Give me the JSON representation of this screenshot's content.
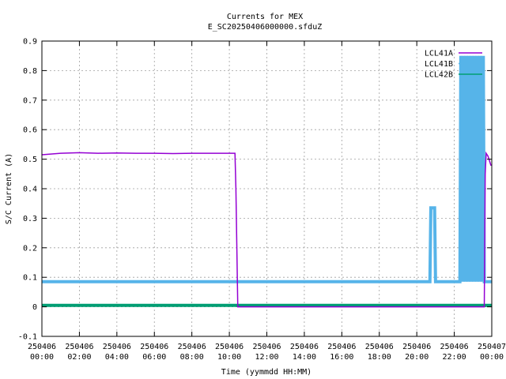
{
  "chart_data": {
    "type": "line",
    "title": "Currents for MEX",
    "subtitle": "E_SC20250406000000.sfduZ",
    "xlabel": "Time (yymmdd HH:MM)",
    "ylabel": "S/C Current (A)",
    "xlim": [
      0,
      24
    ],
    "ylim": [
      -0.1,
      0.9
    ],
    "grid": true,
    "legend_position": "top-right",
    "x_ticks": [
      {
        "value": 0,
        "date": "250406",
        "time": "00:00"
      },
      {
        "value": 2,
        "date": "250406",
        "time": "02:00"
      },
      {
        "value": 4,
        "date": "250406",
        "time": "04:00"
      },
      {
        "value": 6,
        "date": "250406",
        "time": "06:00"
      },
      {
        "value": 8,
        "date": "250406",
        "time": "08:00"
      },
      {
        "value": 10,
        "date": "250406",
        "time": "10:00"
      },
      {
        "value": 12,
        "date": "250406",
        "time": "12:00"
      },
      {
        "value": 14,
        "date": "250406",
        "time": "14:00"
      },
      {
        "value": 16,
        "date": "250406",
        "time": "16:00"
      },
      {
        "value": 18,
        "date": "250406",
        "time": "18:00"
      },
      {
        "value": 20,
        "date": "250406",
        "time": "20:00"
      },
      {
        "value": 22,
        "date": "250406",
        "time": "22:00"
      },
      {
        "value": 24,
        "date": "250407",
        "time": "00:00"
      }
    ],
    "y_ticks": [
      "-0.1",
      "0",
      "0.1",
      "0.2",
      "0.3",
      "0.4",
      "0.5",
      "0.6",
      "0.7",
      "0.8",
      "0.9"
    ],
    "series": [
      {
        "name": "LCL41A",
        "color": "#9400d3",
        "x": [
          0,
          1,
          2,
          3,
          4,
          5,
          6,
          7,
          8,
          9,
          10,
          10.3,
          10.35,
          10.45,
          12,
          14,
          16,
          18,
          20,
          22,
          23.0,
          23.6,
          23.65,
          23.7,
          23.8,
          23.95,
          24
        ],
        "y": [
          0.515,
          0.52,
          0.522,
          0.52,
          0.521,
          0.52,
          0.52,
          0.519,
          0.52,
          0.52,
          0.52,
          0.52,
          0.4,
          0.0,
          0.0,
          0.0,
          0.0,
          0.0,
          0.0,
          0.0,
          0.0,
          0.0,
          0.45,
          0.52,
          0.51,
          0.48,
          0.48
        ]
      },
      {
        "name": "LCL41B",
        "color": "#56b4e9",
        "x": [
          0,
          4,
          8,
          12,
          16,
          20,
          20.7,
          20.75,
          20.95,
          21.0,
          22.0,
          22.3,
          22.35,
          22.45,
          22.5,
          22.6,
          22.65,
          22.75,
          22.8,
          22.9,
          22.95,
          23.05,
          23.1,
          23.2,
          23.25,
          23.35,
          23.4,
          23.5,
          23.55,
          23.6,
          23.65,
          24
        ],
        "y": [
          0.085,
          0.085,
          0.085,
          0.085,
          0.085,
          0.085,
          0.085,
          0.335,
          0.335,
          0.085,
          0.085,
          0.085,
          0.85,
          0.085,
          0.85,
          0.085,
          0.85,
          0.085,
          0.85,
          0.085,
          0.85,
          0.085,
          0.85,
          0.085,
          0.85,
          0.085,
          0.85,
          0.085,
          0.85,
          0.085,
          0.085,
          0.085
        ]
      },
      {
        "name": "LCL42B",
        "color": "#009e73",
        "x": [
          0,
          4,
          8,
          12,
          16,
          20,
          24
        ],
        "y": [
          0.005,
          0.005,
          0.005,
          0.005,
          0.005,
          0.005,
          0.005
        ]
      }
    ]
  }
}
